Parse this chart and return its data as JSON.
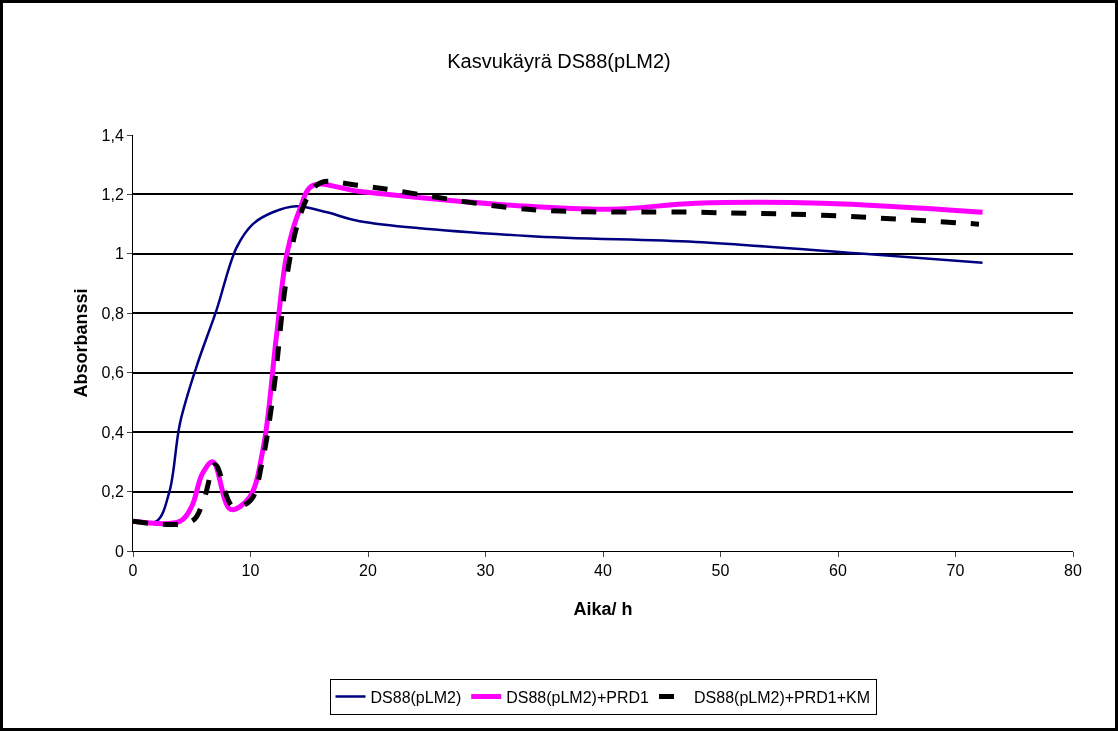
{
  "chart_data": {
    "type": "line",
    "title": "Kasvukäyrä DS88(pLM2)",
    "xlabel": "Aika/ h",
    "ylabel": "Absorbanssi",
    "xlim": [
      0,
      80
    ],
    "xticks": [
      0,
      10,
      20,
      30,
      40,
      50,
      60,
      70,
      80
    ],
    "ylim": [
      0,
      1.4
    ],
    "yticks": [
      0,
      {
        "value": 0.2,
        "label": "0,2"
      },
      {
        "value": 0.4,
        "label": "0,4"
      },
      {
        "value": 0.6,
        "label": "0,6"
      },
      {
        "value": 0.8,
        "label": "0,8"
      },
      1,
      {
        "value": 1.2,
        "label": "1,2"
      },
      {
        "value": 1.4,
        "label": "1,4"
      }
    ],
    "grid": "y",
    "legend": "bottom",
    "marker": "none",
    "series": [
      {
        "name": "DS88(pLM2)",
        "color": "#000080",
        "line_style": "solid",
        "x": [
          0,
          2,
          3.1,
          4,
          5.4,
          7.1,
          8.8,
          10.2,
          11.9,
          13.9,
          16.5,
          19.3,
          33.6,
          47.9,
          62.2,
          72.3
        ],
        "values": [
          0.1,
          0.1,
          0.2,
          0.43,
          0.62,
          0.81,
          1.02,
          1.1,
          1.14,
          1.16,
          1.14,
          1.11,
          1.06,
          1.04,
          1.0,
          0.97
        ]
      },
      {
        "name": "DS88(pLM2)+PRD1",
        "color": "#ff00ff",
        "line_style": "solid",
        "x": [
          0,
          4,
          5,
          5.9,
          6.8,
          8.3,
          9.9,
          11.1,
          12.2,
          13.1,
          14.2,
          15.3,
          19.3,
          33.6,
          40.7,
          47.9,
          58.7,
          72.3
        ],
        "values": [
          0.1,
          0.1,
          0.15,
          0.26,
          0.3,
          0.14,
          0.18,
          0.35,
          0.72,
          1.0,
          1.15,
          1.23,
          1.21,
          1.16,
          1.15,
          1.17,
          1.17,
          1.14
        ]
      },
      {
        "name": "DS88(pLM2)+PRD1+KM",
        "color": "#000000",
        "line_style": "dashed",
        "x": [
          0,
          5,
          6,
          7,
          8.5,
          10,
          11,
          12,
          13,
          14,
          15,
          16,
          19.3,
          33.6,
          47.9,
          58.7,
          72
        ],
        "values": [
          0.1,
          0.1,
          0.17,
          0.29,
          0.15,
          0.17,
          0.3,
          0.55,
          0.9,
          1.1,
          1.2,
          1.24,
          1.23,
          1.15,
          1.14,
          1.13,
          1.1
        ]
      }
    ]
  }
}
